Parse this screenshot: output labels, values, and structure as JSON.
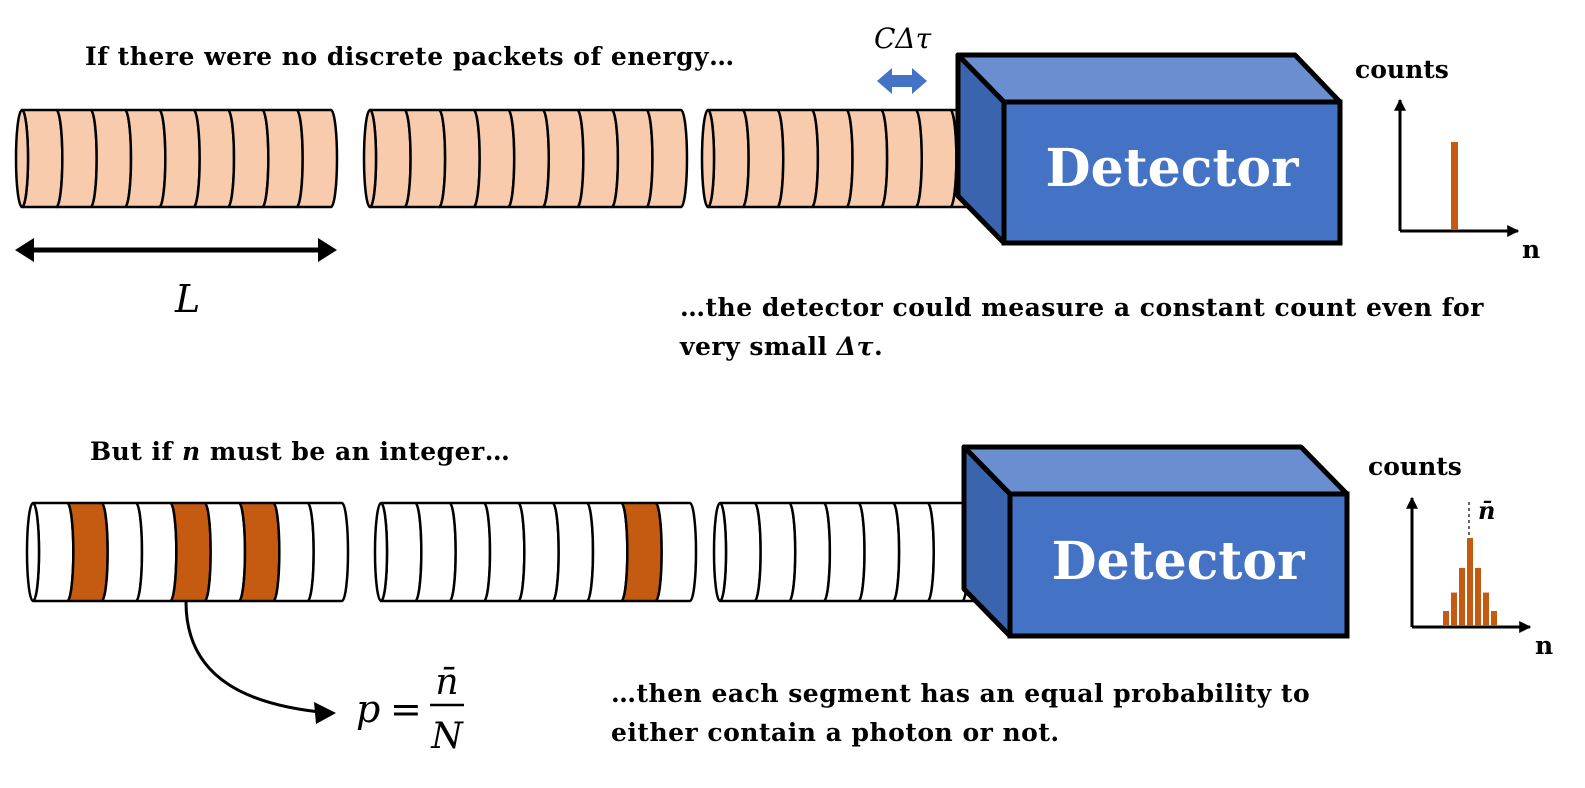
{
  "top": {
    "caption": "If there were no discrete packets of energy…",
    "delta_label": "CΔτ",
    "length_label": "L",
    "detector_label": "Detector",
    "note_line1": "…the detector could measure a constant count even for",
    "note_line2_prefix": "very small ",
    "note_line2_symbol": "Δτ",
    "note_line2_suffix": ".",
    "hist_ylabel": "counts",
    "hist_xlabel": "n"
  },
  "bottom": {
    "caption_prefix": "But if ",
    "caption_symbol": "n",
    "caption_suffix": " must be an integer…",
    "formula_p": "p",
    "formula_eq": "=",
    "formula_num": "n̄",
    "formula_den": "N",
    "detector_label": "Detector",
    "note_line1": "…then each segment has an equal probability to",
    "note_line2": "either contain a photon or not.",
    "hist_ylabel": "counts",
    "hist_xlabel": "n",
    "mean_label": "n̄"
  },
  "colors": {
    "segment_fill_continuous": "#f8cbad",
    "segment_fill_empty": "#ffffff",
    "photon_fill": "#c55a11",
    "detector_front": "#4472c4",
    "detector_top": "#6a8fd0",
    "detector_side": "#3a64ad",
    "arrow_blue": "#4472c4",
    "bar_color": "#c55a11"
  },
  "chart_data": [
    {
      "type": "bar",
      "title": "",
      "xlabel": "n",
      "ylabel": "counts",
      "values": [
        1
      ],
      "note": "single count value"
    },
    {
      "type": "bar",
      "title": "",
      "xlabel": "n",
      "ylabel": "counts",
      "values": [
        0.17,
        0.38,
        0.66,
        1.0,
        0.66,
        0.38,
        0.17
      ],
      "mean_marker": "n̄"
    }
  ],
  "photon_segments": {
    "bottom_cylinder_1": [
      1,
      4,
      6
    ],
    "bottom_cylinder_2": [
      7
    ]
  }
}
